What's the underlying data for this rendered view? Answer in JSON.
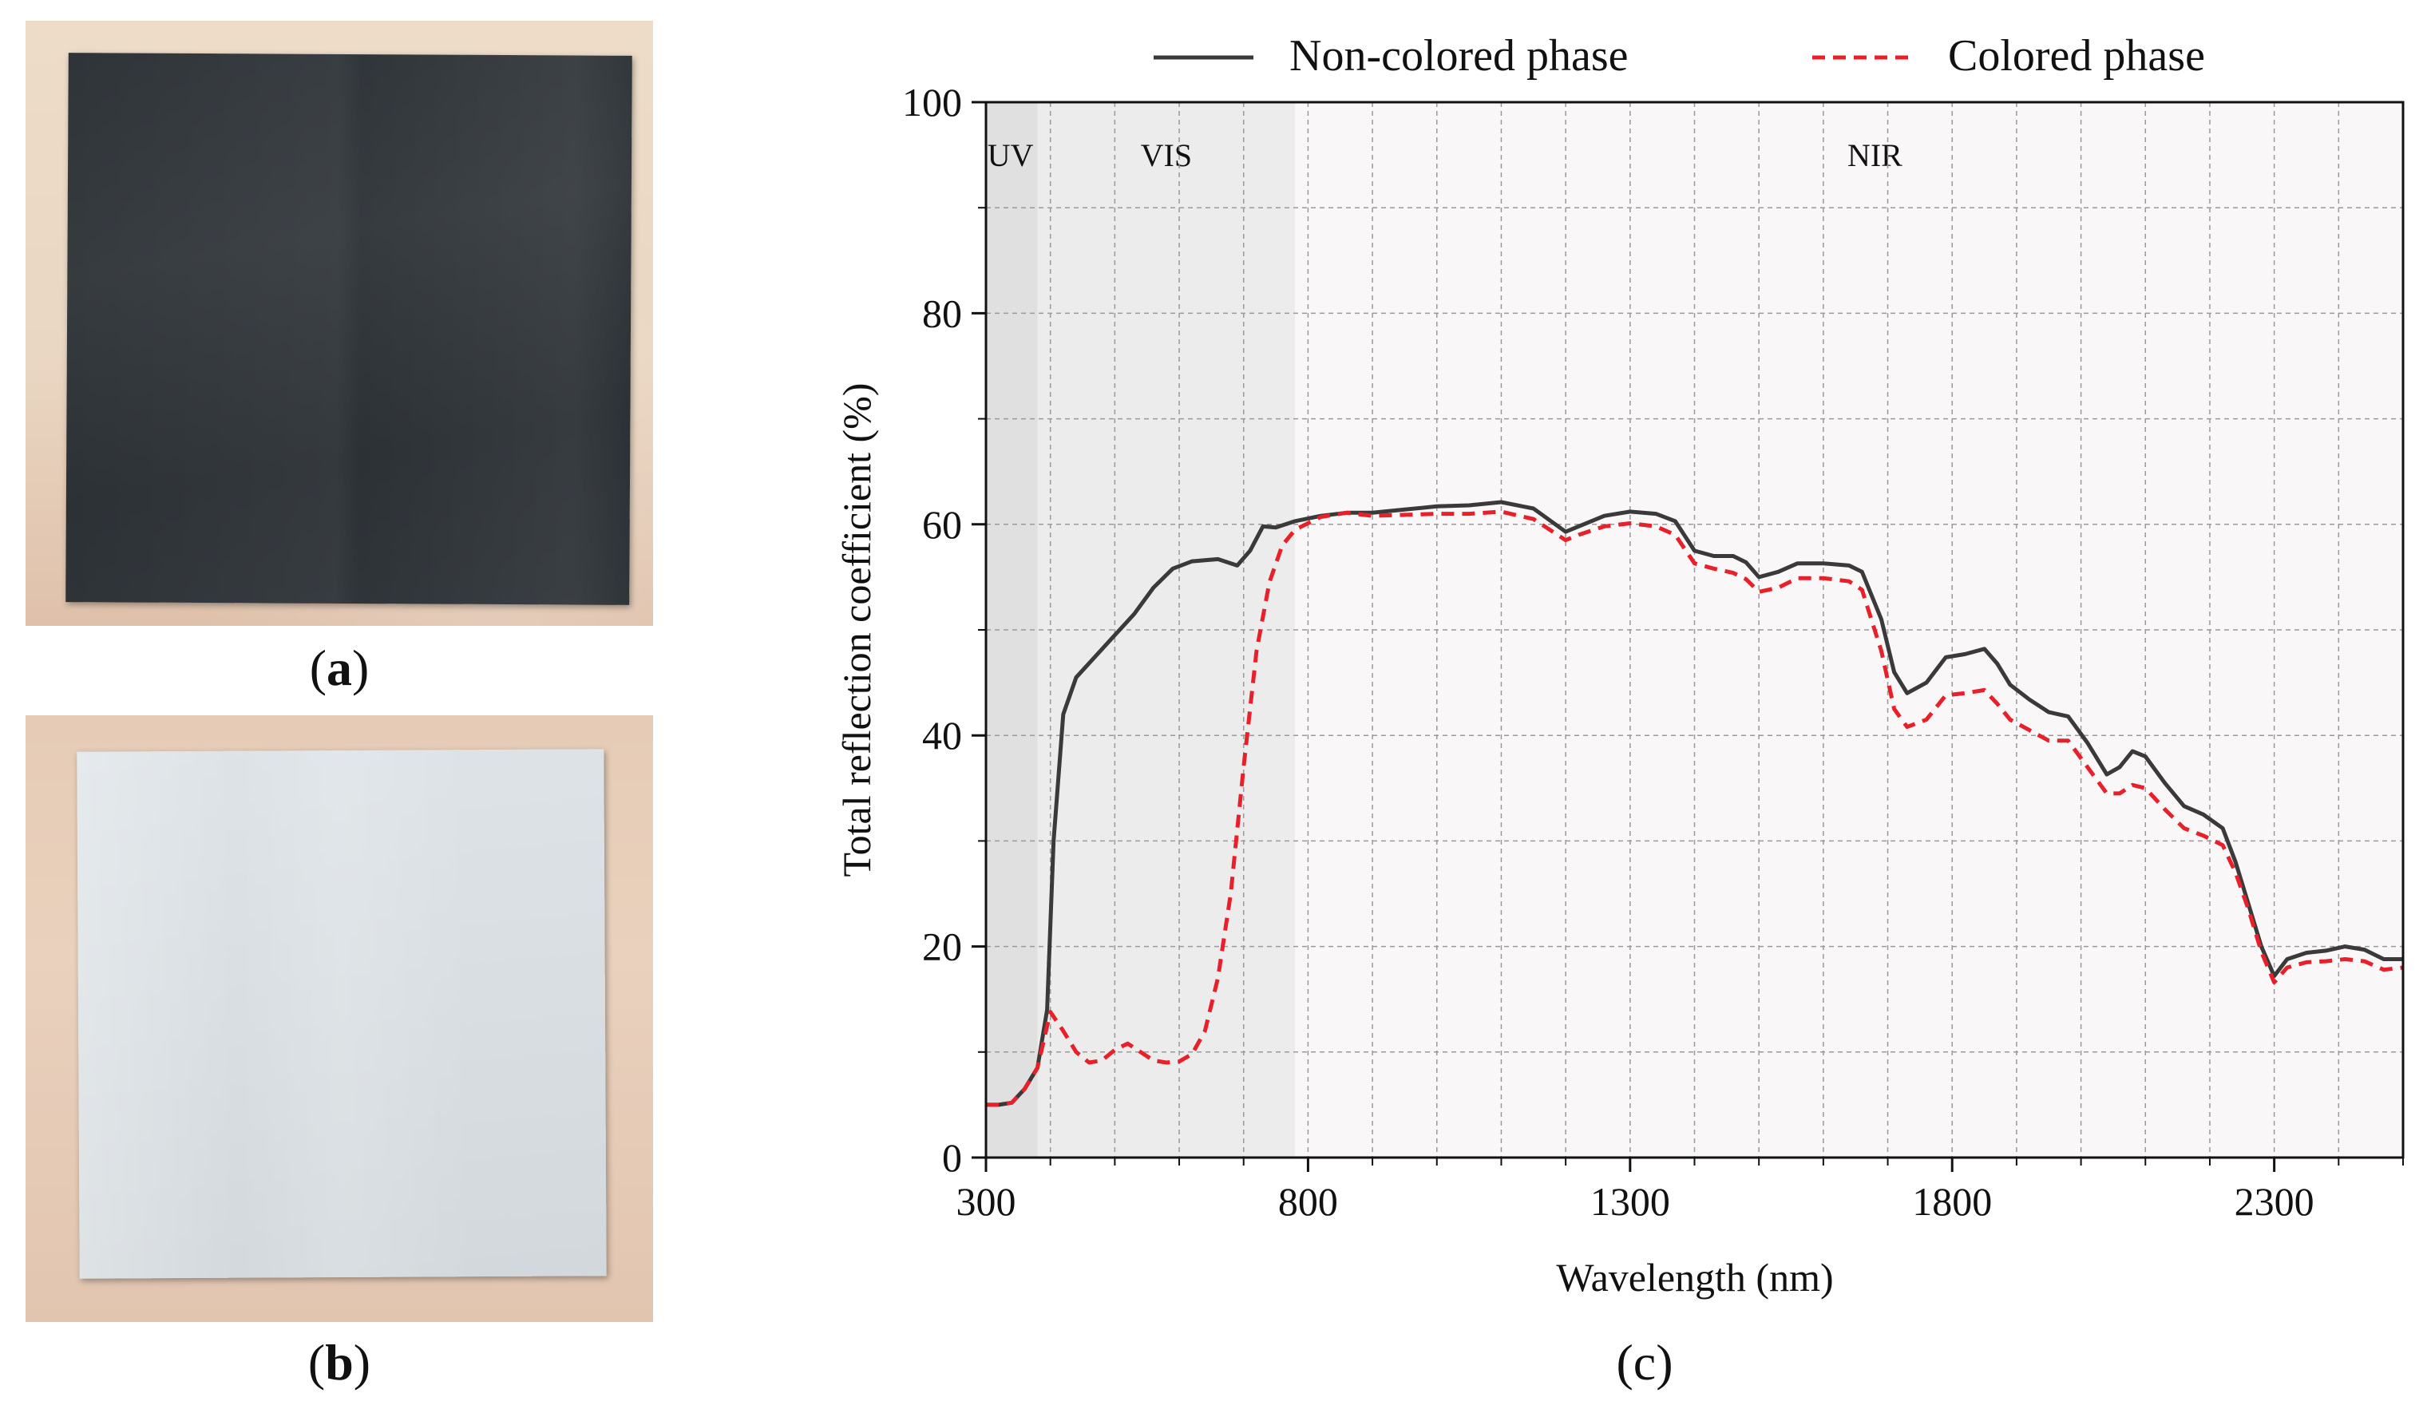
{
  "panel_labels": {
    "a": "a",
    "b": "b",
    "c": "c"
  },
  "photos": {
    "a": {
      "content": "black-coated-panel",
      "panel_color": "#32373c",
      "background_color": "#ead7c3"
    },
    "b": {
      "content": "light-grey-coated-panel",
      "panel_color": "#d9dfe3",
      "background_color": "#e6ccb6"
    }
  },
  "chart_data": {
    "type": "line",
    "xlabel": "Wavelength (nm)",
    "ylabel": "Total reflection coefficient (%)",
    "xlim": [
      300,
      2500
    ],
    "ylim": [
      0,
      100
    ],
    "xticks": [
      300,
      800,
      1300,
      1800,
      2300
    ],
    "yticks": [
      0,
      20,
      40,
      60,
      80,
      100
    ],
    "grid": true,
    "legend_position": "top",
    "regions": [
      {
        "label": "UV",
        "from": 300,
        "to": 380,
        "color": "#e0e0e0"
      },
      {
        "label": "VIS",
        "from": 380,
        "to": 780,
        "color": "#ececec"
      },
      {
        "label": "NIR",
        "from": 780,
        "to": 2500,
        "color": "#f9f7f7"
      }
    ],
    "series": [
      {
        "name": "Non-colored phase",
        "color": "#3a3a3a",
        "dash": "solid",
        "points": [
          [
            300,
            5
          ],
          [
            320,
            5
          ],
          [
            340,
            5.2
          ],
          [
            360,
            6.5
          ],
          [
            380,
            8.5
          ],
          [
            395,
            14
          ],
          [
            405,
            30
          ],
          [
            420,
            42
          ],
          [
            440,
            45.5
          ],
          [
            470,
            47.5
          ],
          [
            500,
            49.5
          ],
          [
            530,
            51.5
          ],
          [
            560,
            54
          ],
          [
            590,
            55.8
          ],
          [
            620,
            56.5
          ],
          [
            660,
            56.7
          ],
          [
            690,
            56.1
          ],
          [
            710,
            57.5
          ],
          [
            730,
            59.8
          ],
          [
            750,
            59.7
          ],
          [
            780,
            60.3
          ],
          [
            820,
            60.8
          ],
          [
            860,
            61.1
          ],
          [
            900,
            61.1
          ],
          [
            950,
            61.4
          ],
          [
            1000,
            61.7
          ],
          [
            1050,
            61.8
          ],
          [
            1100,
            62.1
          ],
          [
            1150,
            61.5
          ],
          [
            1200,
            59.3
          ],
          [
            1220,
            59.8
          ],
          [
            1260,
            60.8
          ],
          [
            1300,
            61.2
          ],
          [
            1340,
            61
          ],
          [
            1370,
            60.3
          ],
          [
            1400,
            57.5
          ],
          [
            1430,
            57
          ],
          [
            1460,
            57
          ],
          [
            1480,
            56.4
          ],
          [
            1500,
            55
          ],
          [
            1530,
            55.5
          ],
          [
            1560,
            56.3
          ],
          [
            1600,
            56.3
          ],
          [
            1640,
            56.1
          ],
          [
            1660,
            55.5
          ],
          [
            1690,
            51
          ],
          [
            1710,
            46
          ],
          [
            1730,
            44
          ],
          [
            1760,
            45
          ],
          [
            1790,
            47.4
          ],
          [
            1820,
            47.7
          ],
          [
            1850,
            48.2
          ],
          [
            1870,
            46.8
          ],
          [
            1890,
            44.8
          ],
          [
            1920,
            43.4
          ],
          [
            1950,
            42.2
          ],
          [
            1980,
            41.8
          ],
          [
            2010,
            39.3
          ],
          [
            2040,
            36.3
          ],
          [
            2060,
            37
          ],
          [
            2080,
            38.5
          ],
          [
            2100,
            38
          ],
          [
            2130,
            35.5
          ],
          [
            2160,
            33.3
          ],
          [
            2190,
            32.5
          ],
          [
            2220,
            31.2
          ],
          [
            2240,
            28
          ],
          [
            2260,
            24
          ],
          [
            2280,
            20
          ],
          [
            2300,
            17.2
          ],
          [
            2320,
            18.8
          ],
          [
            2350,
            19.4
          ],
          [
            2380,
            19.6
          ],
          [
            2410,
            20
          ],
          [
            2440,
            19.7
          ],
          [
            2470,
            18.8
          ],
          [
            2500,
            18.8
          ]
        ]
      },
      {
        "name": "Colored phase",
        "color": "#e8202a",
        "dash": "dashed",
        "points": [
          [
            300,
            5
          ],
          [
            320,
            5
          ],
          [
            340,
            5.2
          ],
          [
            360,
            6.5
          ],
          [
            380,
            8.5
          ],
          [
            400,
            13.8
          ],
          [
            420,
            12
          ],
          [
            440,
            10
          ],
          [
            460,
            9
          ],
          [
            480,
            9.2
          ],
          [
            500,
            10.2
          ],
          [
            520,
            10.8
          ],
          [
            540,
            10
          ],
          [
            560,
            9.2
          ],
          [
            580,
            9
          ],
          [
            600,
            9.1
          ],
          [
            620,
            9.8
          ],
          [
            640,
            12
          ],
          [
            660,
            17
          ],
          [
            680,
            25
          ],
          [
            700,
            37
          ],
          [
            720,
            48
          ],
          [
            740,
            54.5
          ],
          [
            760,
            58
          ],
          [
            780,
            59.5
          ],
          [
            820,
            60.7
          ],
          [
            860,
            61.1
          ],
          [
            900,
            60.8
          ],
          [
            950,
            60.9
          ],
          [
            1000,
            61
          ],
          [
            1050,
            61
          ],
          [
            1100,
            61.2
          ],
          [
            1150,
            60.5
          ],
          [
            1200,
            58.5
          ],
          [
            1220,
            59
          ],
          [
            1260,
            59.8
          ],
          [
            1300,
            60.1
          ],
          [
            1340,
            59.8
          ],
          [
            1370,
            59
          ],
          [
            1400,
            56.3
          ],
          [
            1430,
            55.8
          ],
          [
            1460,
            55.4
          ],
          [
            1480,
            54.8
          ],
          [
            1500,
            53.6
          ],
          [
            1530,
            54
          ],
          [
            1560,
            54.9
          ],
          [
            1600,
            54.9
          ],
          [
            1640,
            54.6
          ],
          [
            1660,
            53.8
          ],
          [
            1690,
            48
          ],
          [
            1710,
            42.5
          ],
          [
            1730,
            40.8
          ],
          [
            1760,
            41.5
          ],
          [
            1790,
            43.8
          ],
          [
            1820,
            44
          ],
          [
            1850,
            44.3
          ],
          [
            1870,
            43
          ],
          [
            1890,
            41.5
          ],
          [
            1920,
            40.5
          ],
          [
            1950,
            39.5
          ],
          [
            1980,
            39.5
          ],
          [
            2010,
            37
          ],
          [
            2040,
            34.5
          ],
          [
            2060,
            34.5
          ],
          [
            2080,
            35.3
          ],
          [
            2100,
            35
          ],
          [
            2130,
            33
          ],
          [
            2160,
            31.2
          ],
          [
            2190,
            30.5
          ],
          [
            2220,
            29.6
          ],
          [
            2240,
            27
          ],
          [
            2260,
            23.5
          ],
          [
            2280,
            19.5
          ],
          [
            2300,
            16.6
          ],
          [
            2320,
            18
          ],
          [
            2350,
            18.5
          ],
          [
            2380,
            18.6
          ],
          [
            2410,
            18.8
          ],
          [
            2440,
            18.6
          ],
          [
            2470,
            17.8
          ],
          [
            2500,
            18
          ]
        ]
      }
    ]
  }
}
